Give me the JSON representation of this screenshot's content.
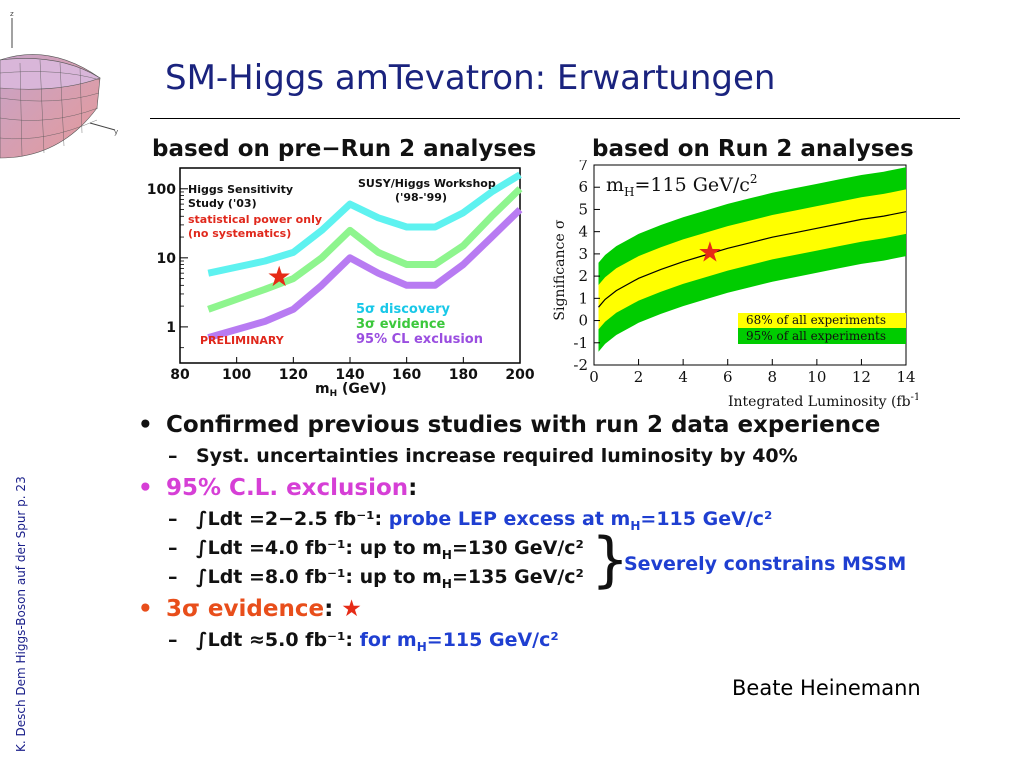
{
  "slide": {
    "title": "SM-Higgs amTevatron: Erwartungen",
    "side_text": "K. Desch Dem Higgs-Boson auf der Spur p. 23",
    "author": "Beate Heinemann"
  },
  "left_panel": {
    "heading": "based on pre−Run 2 analyses",
    "legend_top_left": [
      "Higgs Sensitivity",
      "Study ('03)"
    ],
    "note_red": [
      "statistical power only",
      "(no systematics)"
    ],
    "workshop": [
      "SUSY/Higgs Workshop",
      "('98-'99)"
    ],
    "preliminary": "PRELIMINARY",
    "legend": [
      "5σ discovery",
      "3σ evidence",
      "95% CL exclusion"
    ],
    "xlabel": "m",
    "xlabel_sub": "H",
    "xlabel_unit": " (GeV)",
    "x_ticks": [
      "80",
      "100",
      "120",
      "140",
      "160",
      "180",
      "200"
    ],
    "y_ticks": [
      "100",
      "10",
      "1"
    ],
    "colors": {
      "discovery": "#5ef2f0",
      "evidence": "#8ef58e",
      "exclusion": "#b87bf2",
      "note": "#e0281c",
      "legend_discovery": "#18c8e8",
      "legend_evidence": "#3cc83c",
      "legend_exclusion": "#9a4ee0",
      "star": "#e62b16"
    }
  },
  "right_panel": {
    "heading": "based on Run 2 analyses",
    "mass_label": "m",
    "mass_sub": "H",
    "mass_value": "=115 GeV/c",
    "mass_sup": "2",
    "ylabel": "Significance σ",
    "xlabel": "Integrated Luminosity (fb",
    "xlabel_sup": "-1",
    "xlabel_end": ")",
    "x_ticks": [
      "0",
      "2",
      "4",
      "6",
      "8",
      "10",
      "12",
      "14"
    ],
    "y_ticks": [
      "-2",
      "-1",
      "0",
      "1",
      "2",
      "3",
      "4",
      "5",
      "6",
      "7"
    ],
    "legend": [
      "68% of all experiments",
      "95% of all experiments"
    ],
    "colors": {
      "band68": "#ffff00",
      "band95": "#00cc00",
      "line": "#000000",
      "star": "#e62b16"
    }
  },
  "chart_data": [
    {
      "type": "line",
      "title": "based on pre−Run 2 analyses",
      "xlabel": "mH (GeV)",
      "ylabel": "",
      "xlim": [
        80,
        200
      ],
      "ylim": [
        0.3,
        200
      ],
      "log_y": true,
      "series": [
        {
          "name": "5σ discovery",
          "x": [
            90,
            110,
            120,
            130,
            140,
            150,
            160,
            170,
            180,
            190,
            200
          ],
          "y": [
            6,
            9,
            12,
            25,
            60,
            38,
            28,
            28,
            45,
            90,
            160
          ]
        },
        {
          "name": "3σ evidence",
          "x": [
            90,
            110,
            120,
            130,
            140,
            150,
            160,
            170,
            180,
            190,
            200
          ],
          "y": [
            1.8,
            3.5,
            5,
            10,
            25,
            12,
            8,
            8,
            15,
            40,
            100
          ]
        },
        {
          "name": "95% CL exclusion",
          "x": [
            90,
            110,
            120,
            130,
            140,
            150,
            160,
            170,
            180,
            190,
            200
          ],
          "y": [
            0.7,
            1.2,
            1.8,
            4,
            10,
            6,
            4,
            4,
            8,
            20,
            50
          ]
        }
      ],
      "marker": {
        "label": "★",
        "x": 115,
        "y": 5.5
      }
    },
    {
      "type": "area",
      "title": "based on Run 2 analyses",
      "xlabel": "Integrated Luminosity (fb-1)",
      "ylabel": "Significance σ",
      "xlim": [
        0,
        14
      ],
      "ylim": [
        -2,
        7
      ],
      "x": [
        0.2,
        0.5,
        1,
        2,
        3,
        4,
        5,
        6,
        7,
        8,
        9,
        10,
        11,
        12,
        13,
        14
      ],
      "series": [
        {
          "name": "median",
          "values": [
            0.6,
            0.95,
            1.35,
            1.9,
            2.3,
            2.65,
            2.95,
            3.25,
            3.5,
            3.75,
            3.95,
            4.15,
            4.35,
            4.55,
            4.7,
            4.9
          ]
        },
        {
          "name": "68% of all experiments",
          "lower": [
            -0.4,
            -0.05,
            0.35,
            0.9,
            1.3,
            1.65,
            1.95,
            2.25,
            2.5,
            2.75,
            2.95,
            3.15,
            3.35,
            3.55,
            3.7,
            3.9
          ],
          "upper": [
            1.6,
            1.95,
            2.35,
            2.9,
            3.3,
            3.65,
            3.95,
            4.25,
            4.5,
            4.75,
            4.95,
            5.15,
            5.35,
            5.55,
            5.7,
            5.9
          ]
        },
        {
          "name": "95% of all experiments",
          "lower": [
            -1.4,
            -1.05,
            -0.65,
            -0.1,
            0.3,
            0.65,
            0.95,
            1.25,
            1.5,
            1.75,
            1.95,
            2.15,
            2.35,
            2.55,
            2.7,
            2.9
          ],
          "upper": [
            2.6,
            2.95,
            3.35,
            3.9,
            4.3,
            4.65,
            4.95,
            5.25,
            5.5,
            5.75,
            5.95,
            6.15,
            6.35,
            6.55,
            6.7,
            6.9
          ]
        }
      ],
      "marker": {
        "label": "★",
        "x": 5.2,
        "y": 3.1
      }
    }
  ],
  "bullets": {
    "b1": "Confirmed previous studies with run 2 data experience",
    "b1_sub": "Syst. uncertainties increase required  luminosity by 40%",
    "b2_label": "95% C.L. exclusion",
    "b2_colon": ":",
    "b2_items": [
      {
        "text": "∫Ldt =2−2.5 fb⁻¹: ",
        "highlight": "probe LEP excess at m",
        "sub": "H",
        "tail": "=115 GeV/c²"
      },
      {
        "text": "∫Ldt =4.0 fb⁻¹: up to m",
        "sub": "H",
        "tail": "=130 GeV/c²"
      },
      {
        "text": "∫Ldt =8.0 fb⁻¹: up to m",
        "sub": "H",
        "tail": "=135 GeV/c²"
      }
    ],
    "brace_note": "Severely constrains MSSM",
    "b3_label": "3σ evidence",
    "b3_colon": ": ",
    "b3_star": "★",
    "b3_item": {
      "text": "∫Ldt ≈5.0 fb⁻¹: ",
      "highlight": "for m",
      "sub": "H",
      "tail": "=115 GeV/c²"
    },
    "bullet_char": "•",
    "dash_char": "–"
  }
}
